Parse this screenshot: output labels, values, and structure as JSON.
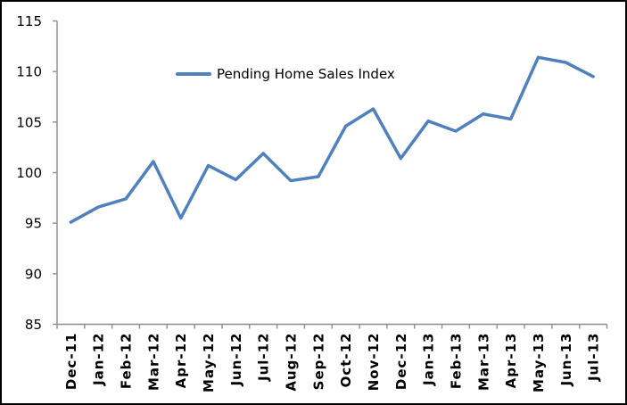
{
  "window": {
    "background": "#FFFFFF",
    "border_color": "#000000"
  },
  "chart_data": {
    "type": "line",
    "title": "",
    "legend": {
      "position": "inside-top-left-of-plot",
      "entries": [
        "Pending Home Sales Index"
      ]
    },
    "categories": [
      "Dec-11",
      "Jan-12",
      "Feb-12",
      "Mar-12",
      "Apr-12",
      "May-12",
      "Jun-12",
      "Jul-12",
      "Aug-12",
      "Sep-12",
      "Oct-12",
      "Nov-12",
      "Dec-12",
      "Jan-13",
      "Feb-13",
      "Mar-13",
      "Apr-13",
      "May-13",
      "Jun-13",
      "Jul-13"
    ],
    "series": [
      {
        "name": "Pending Home Sales Index",
        "color": "#4F81BD",
        "values": [
          95.1,
          96.6,
          97.4,
          101.1,
          95.5,
          100.7,
          99.3,
          101.9,
          99.2,
          99.6,
          104.6,
          106.3,
          101.4,
          105.1,
          104.1,
          105.8,
          105.3,
          111.4,
          110.9,
          109.5
        ]
      }
    ],
    "xlabel": "",
    "ylabel": "",
    "ylim": [
      85,
      115
    ],
    "ytick_step": 5,
    "yticks": [
      85,
      90,
      95,
      100,
      105,
      110,
      115
    ],
    "grid": "off",
    "x_label_rotation": -90,
    "colors": {
      "series": "#4F81BD",
      "axis": "#8C8C8C",
      "text": "#000000"
    }
  }
}
